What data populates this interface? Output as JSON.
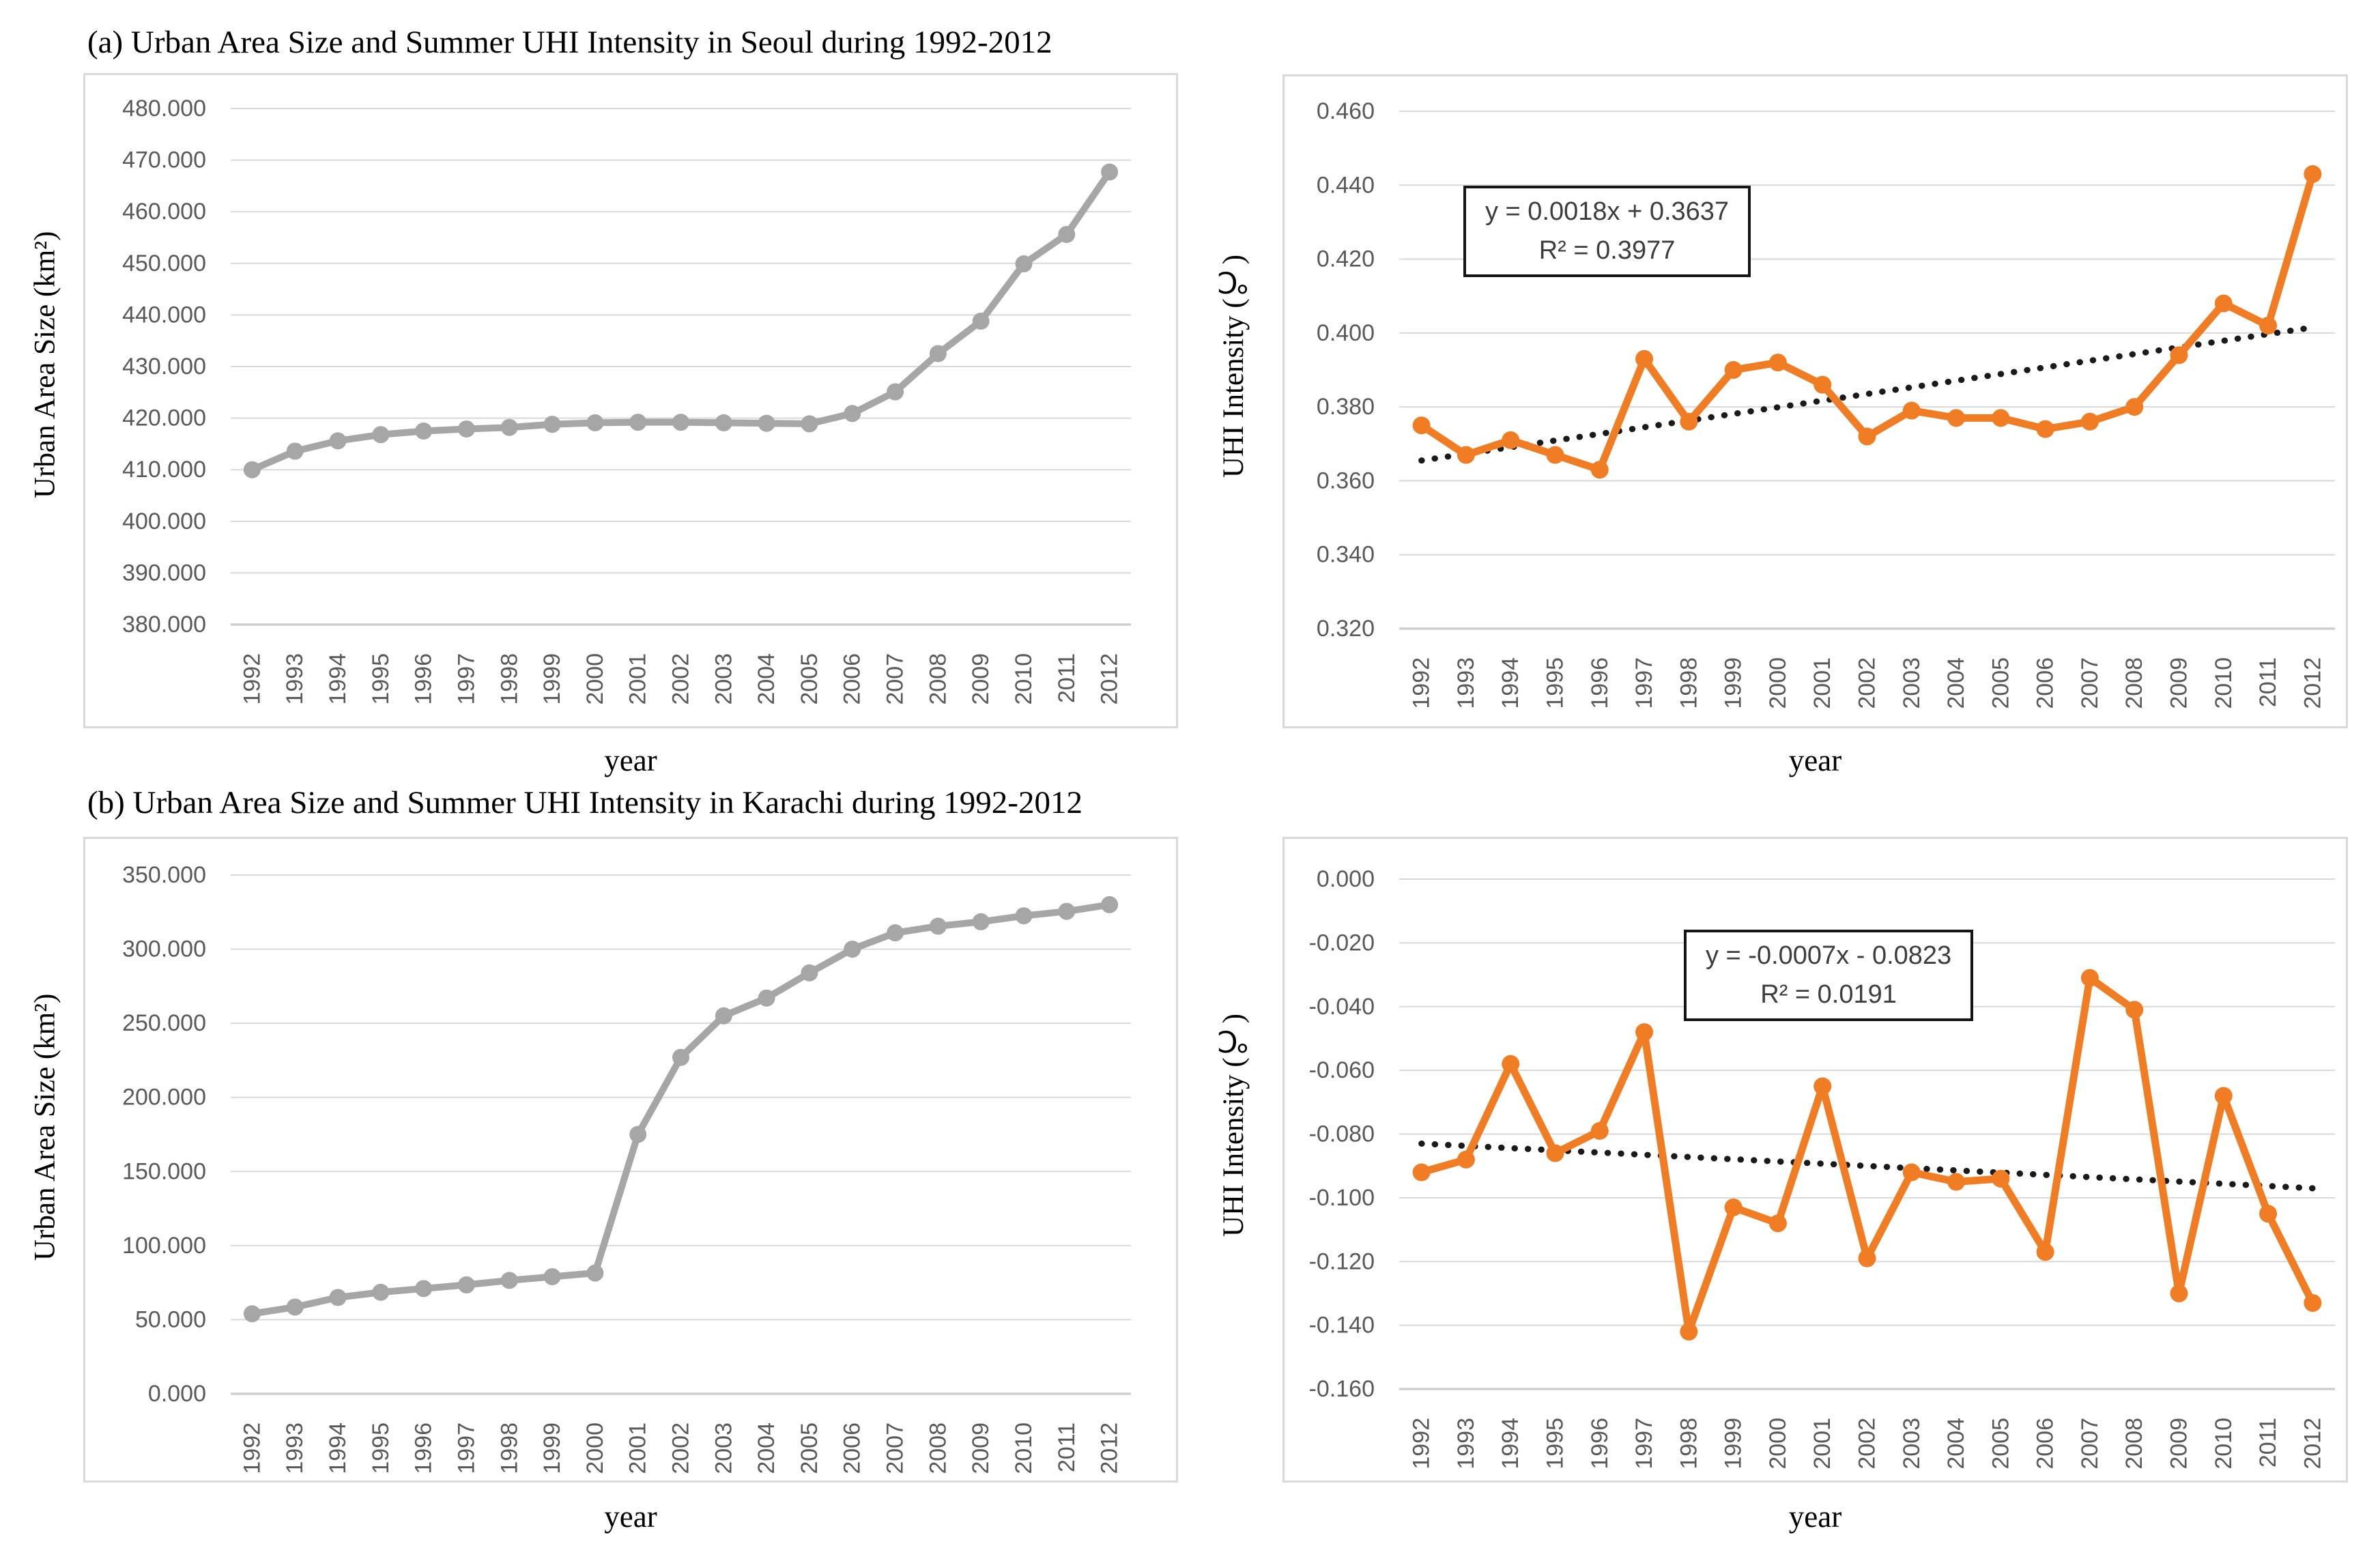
{
  "page": {
    "panel_a_title": "(a) Urban Area Size and Summer UHI Intensity in Seoul during 1992-2012",
    "panel_b_title": "(b) Urban Area Size and Summer UHI Intensity in Karachi during 1992-2012"
  },
  "colors": {
    "gray_series": "#a6a6a6",
    "orange_series": "#f07d23",
    "gridline": "#d9d9d9",
    "axis_line": "#cfcfcf",
    "tick_text": "#595959",
    "trendline": "#1a1a1a",
    "box_border": "#d9d9d9"
  },
  "chart_data": [
    {
      "id": "seoul-urban-area",
      "type": "line",
      "panel": "a",
      "ylabel": "Urban Area Size (km²)",
      "xlabel": "year",
      "categories": [
        "1992",
        "1993",
        "1994",
        "1995",
        "1996",
        "1997",
        "1998",
        "1999",
        "2000",
        "2001",
        "2002",
        "2003",
        "2004",
        "2005",
        "2006",
        "2007",
        "2008",
        "2009",
        "2010",
        "2011",
        "2012"
      ],
      "values": [
        410.0,
        413.6,
        415.6,
        416.8,
        417.5,
        417.9,
        418.2,
        418.8,
        419.1,
        419.2,
        419.2,
        419.1,
        419.0,
        418.9,
        420.9,
        425.1,
        432.5,
        438.8,
        449.9,
        455.6,
        467.7
      ],
      "ylim": [
        380,
        480
      ],
      "ytick_step": 10,
      "ytick_labels": [
        "480.000",
        "470.000",
        "460.000",
        "450.000",
        "440.000",
        "430.000",
        "420.000",
        "410.000",
        "400.000",
        "390.000",
        "380.000"
      ],
      "grid": true,
      "legend": null,
      "series_color": "#a6a6a6",
      "trendline": null
    },
    {
      "id": "seoul-uhi-intensity",
      "type": "line",
      "panel": "a",
      "ylabel": "UHI Intensity (℃)",
      "xlabel": "year",
      "categories": [
        "1992",
        "1993",
        "1994",
        "1995",
        "1996",
        "1997",
        "1998",
        "1999",
        "2000",
        "2001",
        "2002",
        "2003",
        "2004",
        "2005",
        "2006",
        "2007",
        "2008",
        "2009",
        "2010",
        "2011",
        "2012"
      ],
      "values": [
        0.375,
        0.367,
        0.371,
        0.367,
        0.363,
        0.393,
        0.376,
        0.39,
        0.392,
        0.386,
        0.372,
        0.379,
        0.377,
        0.377,
        0.374,
        0.376,
        0.38,
        0.394,
        0.408,
        0.402,
        0.443
      ],
      "ylim": [
        0.32,
        0.46
      ],
      "ytick_step": 0.02,
      "ytick_labels": [
        "0.460",
        "0.440",
        "0.420",
        "0.400",
        "0.380",
        "0.360",
        "0.340",
        "0.320"
      ],
      "grid": true,
      "legend": null,
      "series_color": "#f07d23",
      "trendline": {
        "equation_label": "y = 0.0018x + 0.3637",
        "r2_label": "R² = 0.3977",
        "slope": 0.0018,
        "intercept": 0.3637
      }
    },
    {
      "id": "karachi-urban-area",
      "type": "line",
      "panel": "b",
      "ylabel": "Urban Area Size (km²)",
      "xlabel": "year",
      "categories": [
        "1992",
        "1993",
        "1994",
        "1995",
        "1996",
        "1997",
        "1998",
        "1999",
        "2000",
        "2001",
        "2002",
        "2003",
        "2004",
        "2005",
        "2006",
        "2007",
        "2008",
        "2009",
        "2010",
        "2011",
        "2012"
      ],
      "values": [
        54.0,
        58.5,
        65.0,
        68.5,
        71.0,
        73.5,
        76.5,
        79.0,
        81.5,
        175.0,
        227.0,
        255.0,
        267.0,
        284.0,
        300.0,
        311.0,
        315.5,
        318.5,
        322.5,
        325.5,
        330.0
      ],
      "ylim": [
        0,
        350
      ],
      "ytick_step": 50,
      "ytick_labels": [
        "350.000",
        "300.000",
        "250.000",
        "200.000",
        "150.000",
        "100.000",
        "50.000",
        "0.000"
      ],
      "grid": true,
      "legend": null,
      "series_color": "#a6a6a6",
      "trendline": null
    },
    {
      "id": "karachi-uhi-intensity",
      "type": "line",
      "panel": "b",
      "ylabel": "UHI Intensity (℃)",
      "xlabel": "year",
      "categories": [
        "1992",
        "1993",
        "1994",
        "1995",
        "1996",
        "1997",
        "1998",
        "1999",
        "2000",
        "2001",
        "2002",
        "2003",
        "2004",
        "2005",
        "2006",
        "2007",
        "2008",
        "2009",
        "2010",
        "2011",
        "2012"
      ],
      "values": [
        -0.092,
        -0.088,
        -0.058,
        -0.086,
        -0.079,
        -0.048,
        -0.142,
        -0.103,
        -0.108,
        -0.065,
        -0.119,
        -0.092,
        -0.095,
        -0.094,
        -0.117,
        -0.031,
        -0.041,
        -0.13,
        -0.068,
        -0.105,
        -0.133
      ],
      "ylim": [
        -0.16,
        0.0
      ],
      "ytick_step": 0.02,
      "ytick_labels": [
        "0.000",
        "-0.020",
        "-0.040",
        "-0.060",
        "-0.080",
        "-0.100",
        "-0.120",
        "-0.140",
        "-0.160"
      ],
      "grid": true,
      "legend": null,
      "series_color": "#f07d23",
      "trendline": {
        "equation_label": "y = -0.0007x - 0.0823",
        "r2_label": "R² = 0.0191",
        "slope": -0.0007,
        "intercept": -0.0823
      }
    }
  ]
}
